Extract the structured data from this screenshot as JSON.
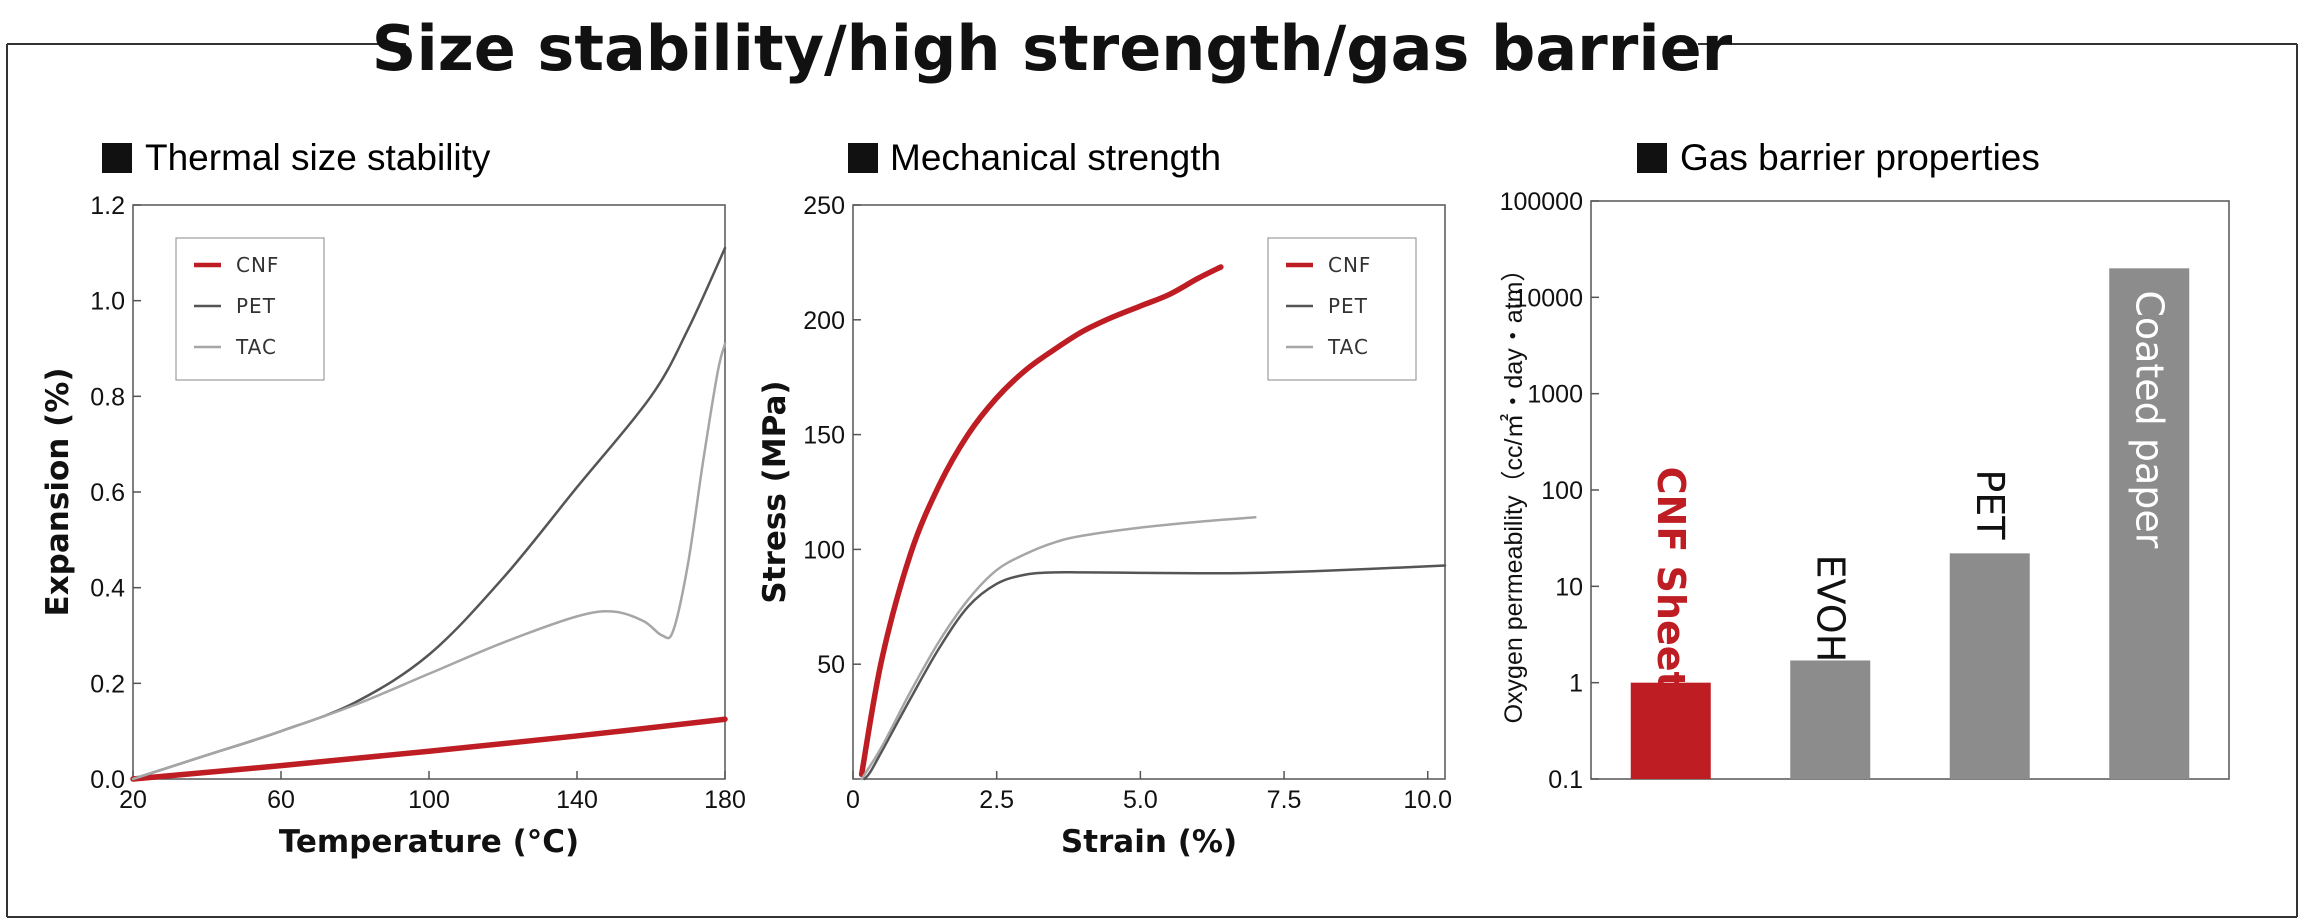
{
  "title": "Size stability/high strength/gas barrier",
  "colors": {
    "cnf": "#be1e23",
    "pet": "#555555",
    "tac": "#a6a6a6",
    "bar_gray": "#8c8c8c"
  },
  "chart_data": [
    {
      "type": "line",
      "title": "Thermal size stability",
      "xlabel": "Temperature (°C)",
      "ylabel": "Expansion (%)",
      "xlim": [
        20,
        180
      ],
      "ylim": [
        0,
        1.2
      ],
      "xticks": [
        "20",
        "60",
        "100",
        "140",
        "180"
      ],
      "yticks": [
        "0.0",
        "0.2",
        "0.4",
        "0.6",
        "0.8",
        "1.0",
        "1.2"
      ],
      "legend_position": "top-left",
      "series": [
        {
          "name": "CNF",
          "color": "#be1e23",
          "width": 5.5,
          "x": [
            20,
            60,
            100,
            140,
            180
          ],
          "y": [
            0,
            0.028,
            0.058,
            0.09,
            0.125
          ]
        },
        {
          "name": "PET",
          "color": "#555555",
          "width": 2.5,
          "x": [
            20,
            40,
            60,
            80,
            100,
            120,
            140,
            160,
            170,
            180
          ],
          "y": [
            0,
            0.05,
            0.1,
            0.16,
            0.26,
            0.42,
            0.61,
            0.8,
            0.94,
            1.11
          ]
        },
        {
          "name": "TAC",
          "color": "#a6a6a6",
          "width": 2.5,
          "x": [
            20,
            40,
            60,
            80,
            100,
            120,
            140,
            150,
            158,
            163,
            166,
            170,
            174,
            178,
            180
          ],
          "y": [
            0,
            0.05,
            0.1,
            0.155,
            0.22,
            0.285,
            0.34,
            0.35,
            0.33,
            0.3,
            0.31,
            0.45,
            0.66,
            0.85,
            0.91
          ]
        }
      ]
    },
    {
      "type": "line",
      "title": "Mechanical strength",
      "xlabel": "Strain (%)",
      "ylabel": "Stress (MPa)",
      "xlim": [
        0,
        10.3
      ],
      "ylim": [
        0,
        250
      ],
      "xticks": [
        "0",
        "2.5",
        "5.0",
        "7.5",
        "10.0"
      ],
      "yticks": [
        "50",
        "100",
        "150",
        "200",
        "250"
      ],
      "legend_position": "top-right",
      "series": [
        {
          "name": "CNF",
          "color": "#be1e23",
          "width": 5.5,
          "x": [
            0.15,
            0.5,
            1.0,
            1.5,
            2.0,
            2.5,
            3.0,
            3.5,
            4.0,
            4.5,
            5.0,
            5.5,
            6.0,
            6.4
          ],
          "y": [
            2,
            52,
            98,
            128,
            150,
            166,
            178,
            187,
            195,
            201,
            206,
            211,
            218,
            223
          ]
        },
        {
          "name": "PET",
          "color": "#555555",
          "width": 2.5,
          "x": [
            0.2,
            0.3,
            0.5,
            1.0,
            1.5,
            2.0,
            2.5,
            3.0,
            3.5,
            4.0,
            5.0,
            6.0,
            7.0,
            8.0,
            9.0,
            10.3
          ],
          "y": [
            0,
            3,
            12,
            35,
            57,
            75,
            85,
            89,
            90,
            90,
            89.8,
            89.6,
            89.8,
            90.5,
            91.5,
            93
          ]
        },
        {
          "name": "TAC",
          "color": "#a6a6a6",
          "width": 2.5,
          "x": [
            0.15,
            0.5,
            1.0,
            1.5,
            2.0,
            2.5,
            3.0,
            3.5,
            4.0,
            5.0,
            6.0,
            7.0
          ],
          "y": [
            0,
            14,
            38,
            60,
            78,
            91,
            98,
            103,
            106,
            109.5,
            112,
            114
          ]
        }
      ]
    },
    {
      "type": "bar",
      "title": "Gas barrier properties",
      "ylabel": "Oxygen permeability（cc/㎡・day・atm）",
      "yscale": "log",
      "ylim": [
        0.1,
        100000
      ],
      "yticks": [
        "0.1",
        "1",
        "10",
        "100",
        "1000",
        "10000",
        "100000"
      ],
      "categories": [
        "CNF Sheet",
        "EVOH",
        "PET",
        "Coated paper"
      ],
      "values": [
        1,
        1.7,
        22,
        20000
      ]
    }
  ]
}
